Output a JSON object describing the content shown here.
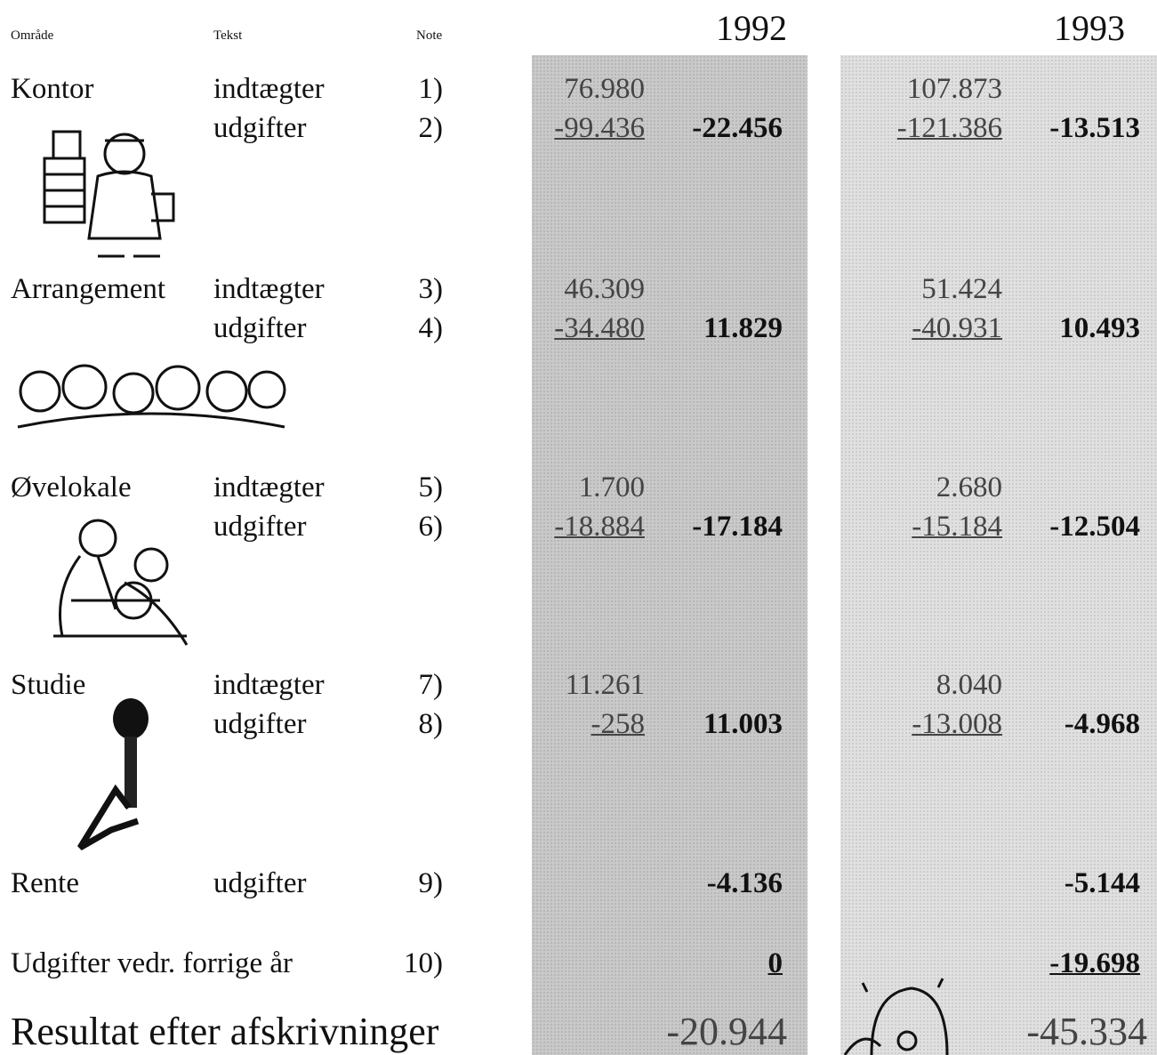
{
  "header": {
    "columns": [
      "Område",
      "Tekst",
      "Note"
    ],
    "years": [
      "1992",
      "1993"
    ]
  },
  "sections": [
    {
      "area": "Kontor",
      "rows": [
        {
          "text": "indtægter",
          "note": "1)",
          "y1992": "76.980",
          "y1993": "107.873"
        },
        {
          "text": "udgifter",
          "note": "2)",
          "y1992": "-99.436",
          "y1993": "-121.386"
        }
      ],
      "total1992": "-22.456",
      "total1993": "-13.513"
    },
    {
      "area": "Arrangement",
      "rows": [
        {
          "text": "indtægter",
          "note": "3)",
          "y1992": "46.309",
          "y1993": "51.424"
        },
        {
          "text": "udgifter",
          "note": "4)",
          "y1992": "-34.480",
          "y1993": "-40.931"
        }
      ],
      "total1992": "11.829",
      "total1993": "10.493"
    },
    {
      "area": "Øvelokale",
      "rows": [
        {
          "text": "indtægter",
          "note": "5)",
          "y1992": "1.700",
          "y1993": "2.680"
        },
        {
          "text": "udgifter",
          "note": "6)",
          "y1992": "-18.884",
          "y1993": "-15.184"
        }
      ],
      "total1992": "-17.184",
      "total1993": "-12.504"
    },
    {
      "area": "Studie",
      "rows": [
        {
          "text": "indtægter",
          "note": "7)",
          "y1992": "11.261",
          "y1993": "8.040"
        },
        {
          "text": "udgifter",
          "note": "8)",
          "y1992": "-258",
          "y1993": "-13.008"
        }
      ],
      "total1992": "11.003",
      "total1993": "-4.968"
    },
    {
      "area": "Rente",
      "rows": [
        {
          "text": "udgifter",
          "note": "9)"
        }
      ],
      "total1992": "-4.136",
      "total1993": "-5.144"
    },
    {
      "area": "Udgifter vedr. forrige år",
      "rows": [
        {
          "note": "10)"
        }
      ],
      "total1992": "0",
      "total1993": "-19.698"
    }
  ],
  "result": {
    "label": "Resultat efter afskrivninger",
    "total1992": "-20.944",
    "total1993": "-45.334"
  }
}
